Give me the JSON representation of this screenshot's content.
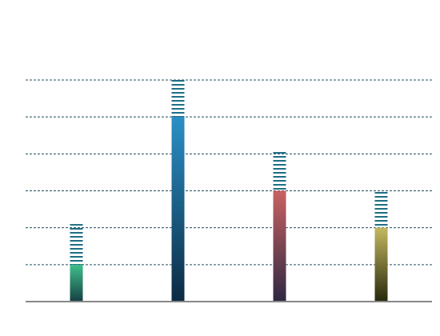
{
  "chart_data": {
    "type": "stacked_bar",
    "series": [
      {
        "values": [
          1,
          5,
          3,
          2
        ],
        "colors": [
          "#3fc08c",
          "#2a90c6",
          "#c86262",
          "#c4b860"
        ],
        "colors_bottom": [
          "#173f42",
          "#0c2a42",
          "#2e2842",
          "#26280c"
        ]
      },
      {
        "values": [
          1.1,
          1,
          1.05,
          1
        ],
        "color": "#1f6e85",
        "pattern": "stripes"
      }
    ],
    "ylim": [
      0,
      6
    ],
    "yticks": [
      0,
      1,
      2,
      3,
      4,
      5,
      6
    ],
    "grid": true,
    "grid_color": "#1f4f5f",
    "axis_color": "#888888"
  }
}
